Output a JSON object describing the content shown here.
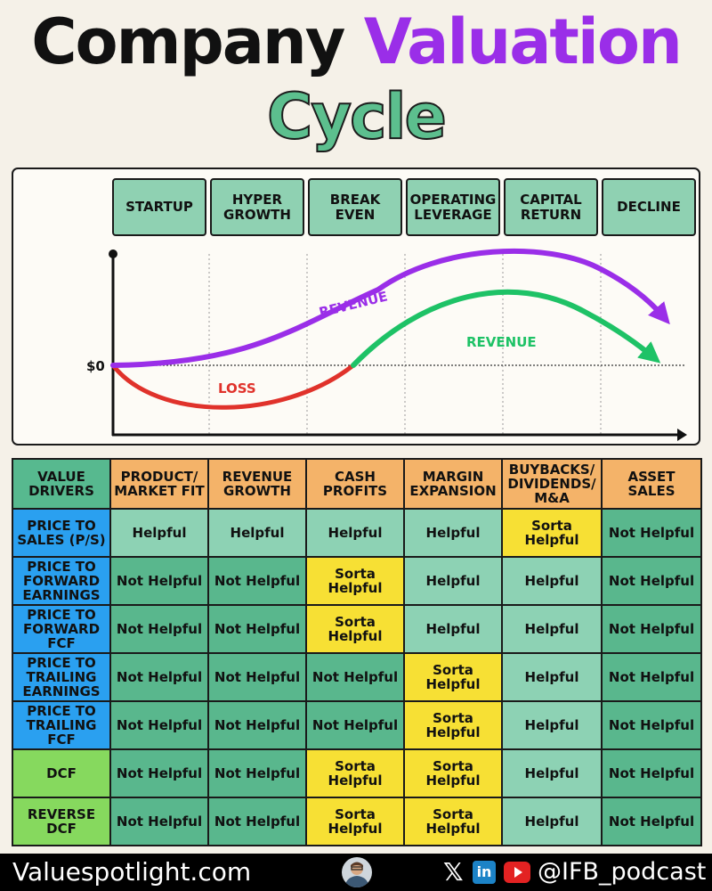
{
  "title": {
    "word1": "Company",
    "word2": "Valuation",
    "word3": "Cycle"
  },
  "stages": [
    {
      "line1": "STARTUP",
      "line2": ""
    },
    {
      "line1": "HYPER",
      "line2": "GROWTH"
    },
    {
      "line1": "BREAK",
      "line2": "EVEN"
    },
    {
      "line1": "OPERATING",
      "line2": "LEVERAGE"
    },
    {
      "line1": "CAPITAL",
      "line2": "RETURN"
    },
    {
      "line1": "DECLINE",
      "line2": ""
    }
  ],
  "chart": {
    "zero_label": "$0",
    "revenue_label_1": "REVENUE",
    "revenue_label_2": "REVENUE",
    "loss_label": "LOSS",
    "colors": {
      "revenue_purple": "#9a2ee8",
      "revenue_green": "#1ec266",
      "loss_red": "#e0322b"
    }
  },
  "table": {
    "corner": [
      "VALUE",
      "DRIVERS"
    ],
    "headers": [
      [
        "PRODUCT/",
        "MARKET FIT"
      ],
      [
        "REVENUE",
        "GROWTH"
      ],
      [
        "CASH",
        "PROFITS"
      ],
      [
        "MARGIN",
        "EXPANSION"
      ],
      [
        "BUYBACKS/",
        "DIVIDENDS/",
        "M&A"
      ],
      [
        "ASSET",
        "SALES"
      ]
    ],
    "rows": [
      {
        "label": [
          "PRICE TO",
          "SALES (P/S)"
        ],
        "color": "blue",
        "cells": [
          "Helpful",
          "Helpful",
          "Helpful",
          "Helpful",
          "Sorta Helpful",
          "Not Helpful"
        ]
      },
      {
        "label": [
          "PRICE TO",
          "FORWARD",
          "EARNINGS"
        ],
        "color": "blue",
        "cells": [
          "Not Helpful",
          "Not Helpful",
          "Sorta Helpful",
          "Helpful",
          "Helpful",
          "Not Helpful"
        ]
      },
      {
        "label": [
          "PRICE TO",
          "FORWARD",
          "FCF"
        ],
        "color": "blue",
        "cells": [
          "Not Helpful",
          "Not Helpful",
          "Sorta Helpful",
          "Helpful",
          "Helpful",
          "Not Helpful"
        ]
      },
      {
        "label": [
          "PRICE TO",
          "TRAILING",
          "EARNINGS"
        ],
        "color": "blue",
        "cells": [
          "Not Helpful",
          "Not Helpful",
          "Not Helpful",
          "Sorta Helpful",
          "Helpful",
          "Not Helpful"
        ]
      },
      {
        "label": [
          "PRICE TO",
          "TRAILING",
          "FCF"
        ],
        "color": "blue",
        "cells": [
          "Not Helpful",
          "Not Helpful",
          "Not Helpful",
          "Sorta Helpful",
          "Helpful",
          "Not Helpful"
        ]
      },
      {
        "label": [
          "DCF"
        ],
        "color": "green",
        "cells": [
          "Not Helpful",
          "Not Helpful",
          "Sorta Helpful",
          "Sorta Helpful",
          "Helpful",
          "Not Helpful"
        ]
      },
      {
        "label": [
          "REVERSE",
          "DCF"
        ],
        "color": "green",
        "cells": [
          "Not Helpful",
          "Not Helpful",
          "Sorta Helpful",
          "Sorta Helpful",
          "Helpful",
          "Not Helpful"
        ]
      }
    ],
    "colors": {
      "helpful": "#8dd2b4",
      "not_helpful": "#59b78d",
      "sorta_helpful": "#f7e034",
      "header": "#f4b369",
      "price_label": "#2aa0f0",
      "dcf_label": "#86d95e"
    }
  },
  "footer": {
    "site": "Valuespotlight.com",
    "handle": "@IFB_podcast",
    "icons": [
      "avatar",
      "x-icon",
      "linkedin-icon",
      "youtube-icon"
    ]
  }
}
